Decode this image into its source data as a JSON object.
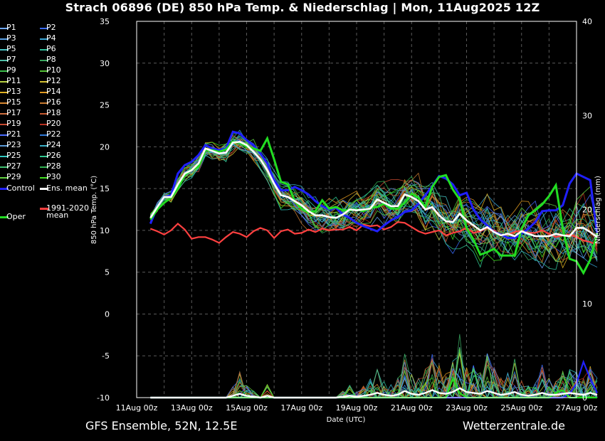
{
  "title": "Strach 06896 (DE)  850 hPa Temp. & Niederschlag | Mon, 11Aug2025 12Z",
  "footer": {
    "left": "GFS Ensemble, 52N, 12.5E",
    "right": "Wetterzentrale.de"
  },
  "legend": {
    "items": [
      {
        "label": "P1",
        "color": "#6fa8ff"
      },
      {
        "label": "P2",
        "color": "#3a6cff"
      },
      {
        "label": "P3",
        "color": "#5aa0e6"
      },
      {
        "label": "P4",
        "color": "#3aa6d8"
      },
      {
        "label": "P5",
        "color": "#45c3c3"
      },
      {
        "label": "P6",
        "color": "#2fbf9a"
      },
      {
        "label": "P7",
        "color": "#4fc0a8"
      },
      {
        "label": "P8",
        "color": "#3aa860"
      },
      {
        "label": "P9",
        "color": "#3bbf4a"
      },
      {
        "label": "P10",
        "color": "#54c236"
      },
      {
        "label": "P11",
        "color": "#b8d040"
      },
      {
        "label": "P12",
        "color": "#d4c030"
      },
      {
        "label": "P13",
        "color": "#e0b020"
      },
      {
        "label": "P14",
        "color": "#e09a20"
      },
      {
        "label": "P15",
        "color": "#d88830"
      },
      {
        "label": "P16",
        "color": "#c87a30"
      },
      {
        "label": "P17",
        "color": "#d07040"
      },
      {
        "label": "P18",
        "color": "#c85a30"
      },
      {
        "label": "P19",
        "color": "#c84a30"
      },
      {
        "label": "P20",
        "color": "#b83020"
      },
      {
        "label": "P21",
        "color": "#4a6cff"
      },
      {
        "label": "P22",
        "color": "#2f7ad8"
      },
      {
        "label": "P23",
        "color": "#5a9ad8"
      },
      {
        "label": "P24",
        "color": "#3ab0c8"
      },
      {
        "label": "P25",
        "color": "#30c8c0"
      },
      {
        "label": "P26",
        "color": "#30c890"
      },
      {
        "label": "P27",
        "color": "#40c070"
      },
      {
        "label": "P28",
        "color": "#30b050"
      },
      {
        "label": "P29",
        "color": "#60d040"
      },
      {
        "label": "P30",
        "color": "#40e020"
      }
    ],
    "control": {
      "label": "Control",
      "color": "#2020ff"
    },
    "ens_mean": {
      "label": "Ens. mean",
      "color": "#ffffff"
    },
    "oper": {
      "label": "Oper",
      "color": "#22dd22"
    },
    "climo": {
      "label_line1": "1991-2020",
      "label_line2": "mean",
      "color": "#ff4040"
    }
  },
  "chart_data": {
    "type": "line",
    "ylabel": "850 hPa Temp. (°C)",
    "y2label": "Niederschlag (mm)",
    "xlabel": "Date (UTC)",
    "ylim": [
      -10,
      35
    ],
    "y2lim": [
      0,
      40
    ],
    "yticks": [
      "35",
      "30",
      "25",
      "20",
      "15",
      "10",
      "5",
      "0",
      "-5",
      "-10"
    ],
    "y2ticks": [
      "40",
      "30",
      "20",
      "10",
      "0"
    ],
    "xticks": [
      "11Aug 00z",
      "13Aug 00z",
      "15Aug 00z",
      "17Aug 00z",
      "19Aug 00z",
      "21Aug 00z",
      "23Aug 00z",
      "25Aug 00z",
      "27Aug 00z"
    ],
    "xlim_days": [
      0,
      16
    ],
    "x_start_day": 0.5,
    "step_days": 0.25,
    "grid": true,
    "ens_mean": [
      11.5,
      12.8,
      14.0,
      14.0,
      15.5,
      16.8,
      17.2,
      18.0,
      19.8,
      19.5,
      19.2,
      19.3,
      20.5,
      20.6,
      20.2,
      19.4,
      18.5,
      17.2,
      15.6,
      14.2,
      14.0,
      13.5,
      13.0,
      12.3,
      11.8,
      11.8,
      11.6,
      11.5,
      11.9,
      12.5,
      12.4,
      12.5,
      12.6,
      13.7,
      13.3,
      12.9,
      12.9,
      14.3,
      14.0,
      13.5,
      12.5,
      12.8,
      11.8,
      11.1,
      11.0,
      12.0,
      11.2,
      10.6,
      10.0,
      10.4,
      9.8,
      9.4,
      9.6,
      9.3,
      9.9,
      9.6,
      9.3,
      9.3,
      9.3,
      9.6,
      9.4,
      9.3,
      10.3,
      10.3,
      9.8,
      9.2
    ],
    "control": [
      10.8,
      12.8,
      14.0,
      14.2,
      16.8,
      17.8,
      18.2,
      19.0,
      20.2,
      19.8,
      19.6,
      19.8,
      21.8,
      21.6,
      20.8,
      20.2,
      19.2,
      18.0,
      16.0,
      14.8,
      14.8,
      15.2,
      14.8,
      14.3,
      13.5,
      12.9,
      12.5,
      12.7,
      11.9,
      11.5,
      10.9,
      10.5,
      10.2,
      9.9,
      10.6,
      11.2,
      11.6,
      12.2,
      12.4,
      13.2,
      14.2,
      15.3,
      16.5,
      16.2,
      15.5,
      14.2,
      14.5,
      12.5,
      11.3,
      10.6,
      9.8,
      9.5,
      9.1,
      9.1,
      9.6,
      10.2,
      11.0,
      12.3,
      12.4,
      12.4,
      13.0,
      15.6,
      16.8,
      16.4,
      16.0,
      9.5
    ],
    "oper": [
      11.3,
      12.5,
      13.3,
      13.9,
      15.0,
      16.6,
      17.3,
      17.6,
      19.6,
      19.6,
      19.4,
      19.7,
      20.6,
      20.5,
      20.0,
      19.8,
      19.5,
      21.0,
      18.5,
      15.8,
      15.5,
      13.5,
      12.6,
      12.2,
      12.3,
      13.6,
      12.6,
      12.8,
      12.4,
      12.4,
      12.5,
      12.3,
      12.7,
      12.8,
      13.2,
      12.6,
      12.6,
      13.3,
      14.4,
      13.9,
      12.8,
      15.2,
      16.4,
      16.6,
      14.9,
      13.7,
      10.3,
      8.9,
      7.1,
      7.4,
      7.8,
      7.0,
      7.0,
      7.0,
      10.2,
      11.8,
      12.4,
      13.1,
      14.1,
      15.4,
      10.2,
      6.6,
      6.3,
      4.9,
      6.5,
      9.7
    ],
    "climo": [
      10.2,
      9.9,
      9.5,
      10.0,
      10.8,
      10.1,
      9.0,
      9.2,
      9.2,
      8.9,
      8.5,
      9.2,
      9.8,
      9.6,
      9.2,
      9.9,
      10.3,
      10.0,
      9.1,
      9.9,
      10.1,
      9.6,
      9.7,
      10.1,
      9.8,
      10.2,
      10.0,
      10.1,
      10.1,
      10.4,
      10.0,
      10.7,
      10.5,
      10.6,
      10.1,
      10.4,
      11.0,
      10.9,
      10.4,
      9.9,
      9.6,
      9.8,
      10.0,
      9.4,
      9.7,
      9.9,
      10.3,
      9.7,
      9.9,
      10.3,
      10.0,
      9.4,
      9.5,
      9.8,
      10.0,
      9.7,
      9.7,
      10.0,
      9.6,
      9.2,
      9.4,
      9.5,
      9.2,
      8.8,
      8.6,
      8.3
    ],
    "ens_mean_precip": [
      0,
      0,
      0,
      0,
      0,
      0,
      0,
      0,
      0,
      0,
      0,
      0,
      0.2,
      0.4,
      0.2,
      0.1,
      0,
      0.2,
      0,
      0,
      0,
      0,
      0,
      0,
      0,
      0,
      0,
      0,
      0.1,
      0.2,
      0.1,
      0.2,
      0.3,
      0.5,
      0.3,
      0.2,
      0.3,
      0.7,
      0.4,
      0.3,
      0.5,
      0.8,
      0.5,
      0.4,
      0.6,
      1.0,
      0.6,
      0.5,
      0.4,
      0.7,
      0.5,
      0.3,
      0.4,
      0.6,
      0.3,
      0.2,
      0.3,
      0.5,
      0.3,
      0.3,
      0.4,
      0.5,
      0.4,
      0.3,
      0.5,
      0.3
    ],
    "oper_precip": [
      0,
      0,
      0,
      0,
      0,
      0,
      0,
      0,
      0,
      0,
      0,
      0,
      0,
      0,
      0,
      0,
      0,
      0,
      0,
      0,
      0,
      0,
      0,
      0,
      0,
      0,
      0,
      0,
      0,
      0,
      0,
      0,
      0,
      0,
      0,
      0,
      0,
      0,
      0,
      0,
      0,
      0,
      0,
      0,
      2.0,
      0.5,
      0,
      0,
      0,
      0,
      0,
      0,
      0,
      0,
      0,
      0,
      0,
      0,
      0,
      0.5,
      0.8,
      0,
      0,
      0,
      0,
      0
    ],
    "control_precip": [
      0,
      0,
      0,
      0,
      0,
      0,
      0,
      0,
      0,
      0,
      0,
      0,
      0,
      0,
      0,
      0,
      0,
      0,
      0,
      0,
      0,
      0,
      0,
      0,
      0,
      0,
      0,
      0,
      0,
      0,
      0,
      0,
      0,
      0,
      0,
      0,
      0,
      0,
      0,
      0,
      0,
      0,
      0,
      0,
      0,
      0,
      0,
      0,
      0,
      0,
      0,
      0,
      0,
      0,
      0,
      0,
      0,
      0,
      0,
      0,
      0,
      0.4,
      1.5,
      3.8,
      2.0,
      0.5
    ]
  }
}
